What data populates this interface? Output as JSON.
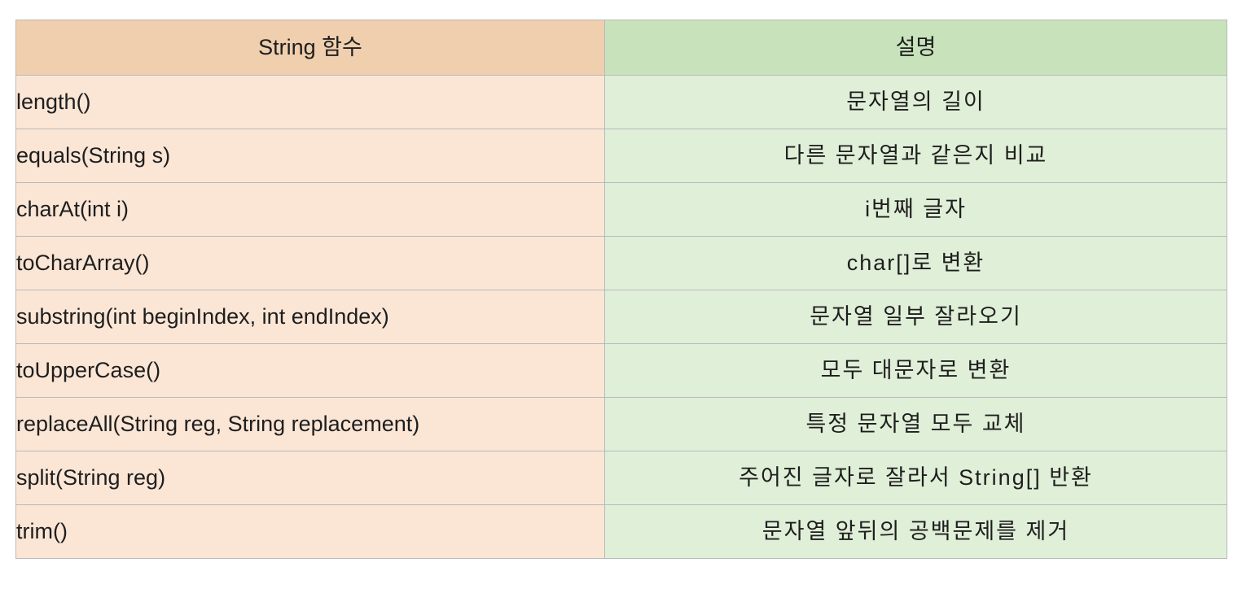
{
  "table": {
    "headers": {
      "function": "String 함수",
      "description": "설명"
    },
    "rows": [
      {
        "function": "length()",
        "description": "문자열의 길이"
      },
      {
        "function": "equals(String s)",
        "description": "다른 문자열과 같은지 비교"
      },
      {
        "function": "charAt(int i)",
        "description": "i번째 글자"
      },
      {
        "function": "toCharArray()",
        "description": "char[]로 변환"
      },
      {
        "function": "substring(int beginIndex, int endIndex)",
        "description": "문자열 일부 잘라오기"
      },
      {
        "function": "toUpperCase()",
        "description": "모두 대문자로 변환"
      },
      {
        "function": "replaceAll(String reg, String replacement)",
        "description": "특정 문자열 모두 교체"
      },
      {
        "function": "split(String reg)",
        "description": "주어진 글자로 잘라서 String[] 반환"
      },
      {
        "function": "trim()",
        "description": "문자열 앞뒤의 공백문제를 제거"
      }
    ]
  },
  "colors": {
    "header_function_bg": "#efcfae",
    "header_description_bg": "#c8e3bb",
    "cell_function_bg": "#fbe6d6",
    "cell_description_bg": "#e0efd8",
    "border": "#b9b9b9"
  }
}
